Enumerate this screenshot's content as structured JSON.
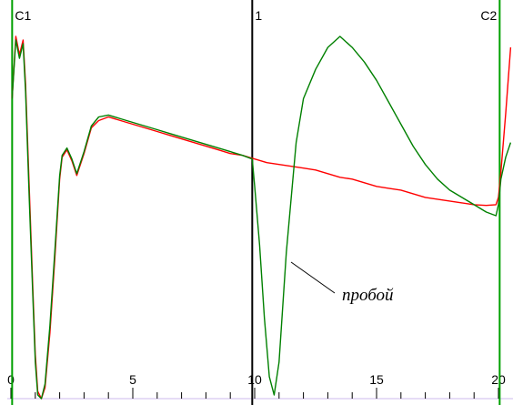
{
  "chart_data": {
    "type": "line",
    "title": "",
    "xlabel": "",
    "ylabel": "",
    "xlim": [
      0,
      20.5
    ],
    "ylim": [
      0,
      1
    ],
    "grid": false,
    "x_ticks": [
      0,
      5,
      10,
      15,
      20
    ],
    "x_tick_labels": [
      "0",
      "5",
      "10",
      "15",
      "20"
    ],
    "cursors": [
      {
        "label": "C1",
        "x": 0.05,
        "color": "#00a000"
      },
      {
        "label": "1",
        "x": 9.9,
        "color": "#000000"
      },
      {
        "label": "C2",
        "x": 20.05,
        "color": "#00a000"
      }
    ],
    "annotation": {
      "text": "пробой",
      "x": 11.2,
      "y": 0.34
    },
    "series": [
      {
        "color": "#ff0000",
        "x": [
          0.05,
          0.2,
          0.35,
          0.5,
          0.6,
          0.75,
          0.9,
          1.0,
          1.1,
          1.25,
          1.4,
          1.6,
          1.8,
          2.0,
          2.1,
          2.3,
          2.5,
          2.7,
          3.0,
          3.3,
          3.6,
          4.0,
          4.5,
          5.0,
          5.5,
          6.0,
          6.5,
          7.0,
          7.5,
          8.0,
          8.5,
          9.0,
          9.5,
          10.0,
          10.5,
          11.0,
          11.5,
          12.0,
          12.5,
          13.0,
          13.5,
          14.0,
          14.5,
          15.0,
          15.5,
          16.0,
          16.5,
          17.0,
          17.5,
          18.0,
          18.5,
          19.0,
          19.5,
          19.9,
          20.0,
          20.1,
          20.3,
          20.5
        ],
        "y": [
          0.82,
          0.99,
          0.94,
          0.98,
          0.86,
          0.58,
          0.3,
          0.12,
          0.02,
          0.0,
          0.03,
          0.18,
          0.38,
          0.6,
          0.66,
          0.68,
          0.65,
          0.61,
          0.67,
          0.74,
          0.76,
          0.77,
          0.76,
          0.75,
          0.74,
          0.73,
          0.72,
          0.71,
          0.7,
          0.69,
          0.68,
          0.67,
          0.665,
          0.655,
          0.645,
          0.64,
          0.635,
          0.63,
          0.625,
          0.615,
          0.605,
          0.6,
          0.59,
          0.58,
          0.575,
          0.57,
          0.56,
          0.55,
          0.545,
          0.54,
          0.535,
          0.53,
          0.528,
          0.53,
          0.55,
          0.62,
          0.78,
          0.96
        ]
      },
      {
        "color": "#008000",
        "x": [
          0.05,
          0.2,
          0.35,
          0.5,
          0.6,
          0.75,
          0.9,
          1.0,
          1.1,
          1.25,
          1.4,
          1.6,
          1.8,
          2.0,
          2.1,
          2.3,
          2.5,
          2.7,
          3.0,
          3.3,
          3.6,
          4.0,
          4.5,
          5.0,
          5.5,
          6.0,
          6.5,
          7.0,
          7.5,
          8.0,
          8.5,
          9.0,
          9.5,
          9.9,
          10.0,
          10.2,
          10.4,
          10.6,
          10.8,
          11.0,
          11.3,
          11.7,
          12.0,
          12.5,
          13.0,
          13.5,
          14.0,
          14.5,
          15.0,
          15.5,
          16.0,
          16.5,
          17.0,
          17.5,
          18.0,
          18.5,
          19.0,
          19.5,
          19.9,
          20.0,
          20.1,
          20.3,
          20.5
        ],
        "y": [
          0.82,
          0.98,
          0.93,
          0.97,
          0.84,
          0.55,
          0.28,
          0.1,
          0.01,
          0.0,
          0.04,
          0.2,
          0.4,
          0.61,
          0.665,
          0.685,
          0.655,
          0.615,
          0.675,
          0.745,
          0.77,
          0.775,
          0.765,
          0.755,
          0.745,
          0.735,
          0.725,
          0.715,
          0.705,
          0.695,
          0.685,
          0.675,
          0.665,
          0.655,
          0.58,
          0.42,
          0.22,
          0.06,
          0.01,
          0.1,
          0.4,
          0.7,
          0.82,
          0.9,
          0.96,
          0.99,
          0.96,
          0.92,
          0.87,
          0.81,
          0.75,
          0.69,
          0.64,
          0.6,
          0.57,
          0.55,
          0.53,
          0.51,
          0.5,
          0.53,
          0.6,
          0.66,
          0.7
        ]
      }
    ]
  }
}
